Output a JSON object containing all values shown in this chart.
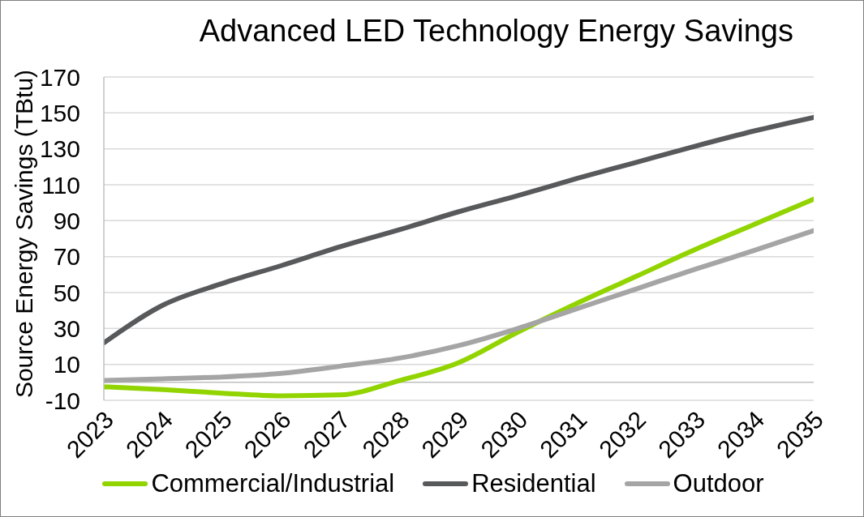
{
  "chart_data": {
    "type": "line",
    "title": "Advanced LED Technology Energy Savings",
    "ylabel": "Source Energy Savings (TBtu)",
    "categories": [
      "2023",
      "2024",
      "2025",
      "2026",
      "2027",
      "2028",
      "2029",
      "2030",
      "2031",
      "2032",
      "2033",
      "2034",
      "2035"
    ],
    "series": [
      {
        "name": "Commercial/Industrial",
        "color": "#92d400",
        "values": [
          -2.5,
          -4,
          -6,
          -7.5,
          -7,
          1,
          11,
          28,
          44,
          59,
          74,
          88,
          102
        ]
      },
      {
        "name": "Residential",
        "color": "#58595b",
        "values": [
          22,
          43,
          55,
          65,
          75.5,
          85,
          95,
          104,
          113.5,
          122.5,
          131.5,
          140,
          147.5
        ]
      },
      {
        "name": "Outdoor",
        "color": "#a5a5a5",
        "values": [
          1,
          2,
          3,
          5,
          9,
          13.5,
          20.5,
          30,
          41,
          52,
          63,
          73.5,
          84.5
        ]
      }
    ],
    "ylim": [
      -10,
      170
    ],
    "yticks": [
      -10,
      10,
      30,
      50,
      70,
      90,
      110,
      130,
      150,
      170
    ],
    "grid": "y",
    "legend": "bottom",
    "marker": "none",
    "line_style": "solid",
    "ref_lines": [
      {
        "axis": "y",
        "value": 0,
        "color": "#bfbfbf"
      }
    ]
  }
}
